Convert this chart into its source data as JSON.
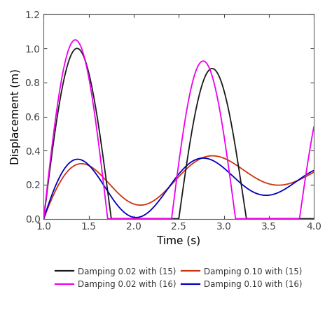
{
  "title": "",
  "xlabel": "Time (s)",
  "ylabel": "Displacement (m)",
  "xlim": [
    1.0,
    4.0
  ],
  "ylim": [
    0.0,
    1.2
  ],
  "xticks": [
    1.0,
    1.5,
    2.0,
    2.5,
    3.0,
    3.5,
    4.0
  ],
  "yticks": [
    0.0,
    0.2,
    0.4,
    0.6,
    0.8,
    1.0,
    1.2
  ],
  "legend": [
    {
      "label": "Damping 0.02 with (15)",
      "color": "#1a1a1a",
      "lw": 1.3
    },
    {
      "label": "Damping 0.02 with (16)",
      "color": "#ee00ee",
      "lw": 1.3
    },
    {
      "label": "Damping 0.10 with (15)",
      "color": "#cc3311",
      "lw": 1.3
    },
    {
      "label": "Damping 0.10 with (16)",
      "color": "#0000bb",
      "lw": 1.3
    }
  ],
  "background_color": "#ffffff",
  "grid": false,
  "figsize": [
    4.74,
    4.43
  ],
  "dpi": 100
}
